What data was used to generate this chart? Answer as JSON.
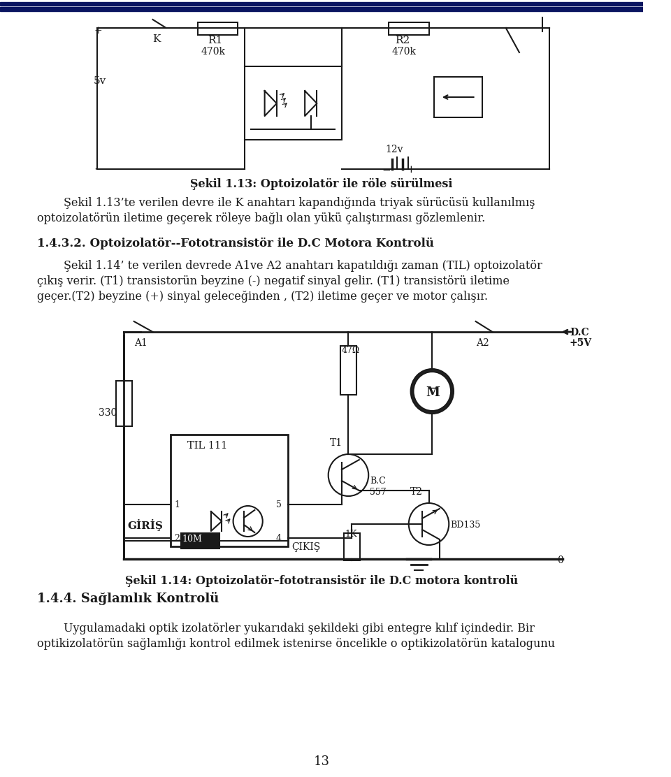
{
  "bg_color": "#ffffff",
  "top_bar_color": "#0a1560",
  "line_color": "#1a1a1a",
  "sekil113_caption": "Şekil 1.13: Optoizolatör ile röle sürülmesi",
  "para1_line1": "Şekil 1.13’te verilen devre ile K anahtarı kapandığında triyak sürücüsü kullanılmış",
  "para1_line2": "optoizolatörün iletime geçerek röleye bağlı olan yükü çalıştırması gözlemlenir.",
  "section_title": "1.4.3.2. Optoizolatör--Fototransistör ile D.C Motora Kontrolü",
  "para2_line1": "Şekil 1.14’ te verilen devrede A1ve A2 anahtarı kapatıldığı zaman (TIL) optoizolatör",
  "para2_line2": "çıkış verir. (T1) transistorün beyzine (-) negatif sinyal gelir. (T1) transistörü iletime",
  "para2_line3": "geçer.(T2) beyzine (+) sinyal geleceğinden , (T2) iletime geçer ve motor çalışır.",
  "sekil114_caption": "Şekil 1.14: Optoizolatör–fototransistör ile D.C motora kontrolü",
  "section2_title": "1.4.4. Sağlamlık Kontrolü",
  "para3_line1": "Uygulamadaki optik izolatörler yukarıdaki şekildeki gibi entegre kılıf içindedir. Bir",
  "para3_line2": "optikizolatörün sağlamlığı kontrol edilmek istenirse öncelikle o optikizolatörün katalogunu",
  "page_number": "13"
}
